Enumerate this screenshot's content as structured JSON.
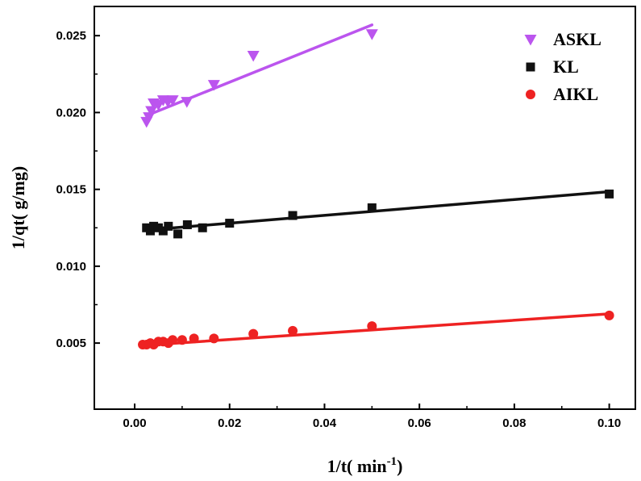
{
  "chart_data": {
    "type": "scatter",
    "xlabel": "1/t( min",
    "xlabel_sup": "-1",
    "xlabel_suffix": ")",
    "ylabel": "1/qt(  g/mg)",
    "xlim": [
      -0.0085,
      0.1055
    ],
    "ylim": [
      0.0007,
      0.0269
    ],
    "x_ticks": [
      0.0,
      0.02,
      0.04,
      0.06,
      0.08,
      0.1
    ],
    "x_tick_labels": [
      "0.00",
      "0.02",
      "0.04",
      "0.06",
      "0.08",
      "0.10"
    ],
    "y_ticks": [
      0.005,
      0.01,
      0.015,
      0.02,
      0.025
    ],
    "y_tick_labels": [
      "0.005",
      "0.010",
      "0.015",
      "0.020",
      "0.025"
    ],
    "grid": false,
    "legend_position": "top-right",
    "series": [
      {
        "name": "ASKL",
        "marker": "triangle-down",
        "color": "#bb55ee",
        "points": [
          [
            0.0025,
            0.0194
          ],
          [
            0.003,
            0.0197
          ],
          [
            0.0035,
            0.0201
          ],
          [
            0.004,
            0.0206
          ],
          [
            0.005,
            0.0205
          ],
          [
            0.006,
            0.0208
          ],
          [
            0.007,
            0.0207
          ],
          [
            0.008,
            0.0208
          ],
          [
            0.011,
            0.0207
          ],
          [
            0.0167,
            0.0218
          ],
          [
            0.025,
            0.0237
          ],
          [
            0.05,
            0.0251
          ]
        ],
        "fit": [
          [
            0.0025,
            0.0198
          ],
          [
            0.05,
            0.0257
          ]
        ]
      },
      {
        "name": "KL",
        "marker": "square",
        "color": "#111111",
        "points": [
          [
            0.0025,
            0.0125
          ],
          [
            0.0033,
            0.0123
          ],
          [
            0.004,
            0.0126
          ],
          [
            0.005,
            0.0125
          ],
          [
            0.006,
            0.0123
          ],
          [
            0.0071,
            0.0126
          ],
          [
            0.0091,
            0.0121
          ],
          [
            0.0111,
            0.0127
          ],
          [
            0.0143,
            0.0125
          ],
          [
            0.02,
            0.0128
          ],
          [
            0.0333,
            0.0133
          ],
          [
            0.05,
            0.0138
          ],
          [
            0.1,
            0.0147
          ]
        ],
        "fit": [
          [
            0.0025,
            0.01235
          ],
          [
            0.1,
            0.01485
          ]
        ]
      },
      {
        "name": "AIKL",
        "marker": "circle",
        "color": "#ee2222",
        "points": [
          [
            0.0017,
            0.0049
          ],
          [
            0.0025,
            0.0049
          ],
          [
            0.0033,
            0.005
          ],
          [
            0.004,
            0.0049
          ],
          [
            0.005,
            0.0051
          ],
          [
            0.006,
            0.0051
          ],
          [
            0.0071,
            0.005
          ],
          [
            0.008,
            0.0052
          ],
          [
            0.01,
            0.0052
          ],
          [
            0.0125,
            0.0053
          ],
          [
            0.0167,
            0.0053
          ],
          [
            0.025,
            0.0056
          ],
          [
            0.0333,
            0.0058
          ],
          [
            0.05,
            0.0061
          ],
          [
            0.1,
            0.0068
          ]
        ],
        "fit": [
          [
            0.0017,
            0.00485
          ],
          [
            0.1,
            0.0069
          ]
        ]
      }
    ]
  }
}
